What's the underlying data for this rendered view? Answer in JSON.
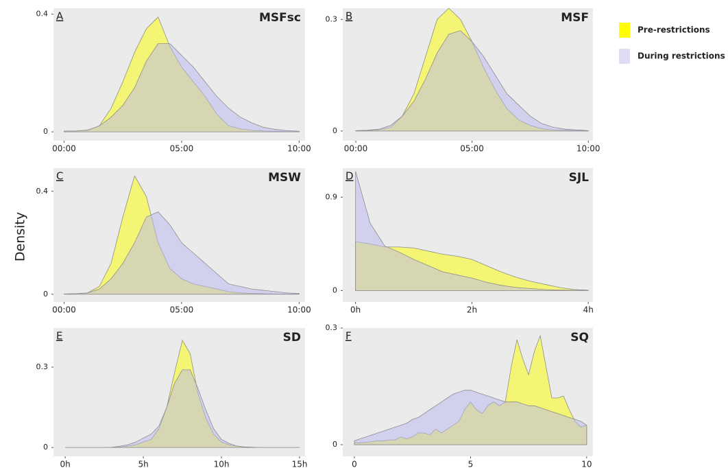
{
  "y_label": "Density",
  "chart_data": [
    {
      "type": "area",
      "panel": "A",
      "title": "MSFsc",
      "x": [
        0,
        0.5,
        1,
        1.5,
        2,
        2.5,
        3,
        3.5,
        4,
        4.5,
        5,
        5.5,
        6,
        6.5,
        7,
        7.5,
        8,
        8.5,
        9,
        9.5,
        10
      ],
      "xlim": [
        -0.45,
        10.25
      ],
      "ylim": [
        -0.03,
        0.42
      ],
      "xticks": [
        {
          "value": 0,
          "label": "00:00"
        },
        {
          "value": 5,
          "label": "05:00"
        },
        {
          "value": 10,
          "label": "10:00"
        }
      ],
      "yticks": [
        0,
        0.4
      ],
      "series": [
        {
          "name": "Pre-restrictions",
          "color": "#ffff00",
          "values": [
            0.003,
            0.003,
            0.005,
            0.02,
            0.08,
            0.17,
            0.27,
            0.35,
            0.39,
            0.29,
            0.22,
            0.17,
            0.12,
            0.06,
            0.02,
            0.01,
            0.005,
            0.003,
            0.002,
            0.001,
            0.001
          ]
        },
        {
          "name": "During restrictions",
          "color": "#b8b8f0",
          "values": [
            0.003,
            0.003,
            0.006,
            0.02,
            0.05,
            0.09,
            0.15,
            0.24,
            0.3,
            0.3,
            0.26,
            0.22,
            0.17,
            0.12,
            0.08,
            0.05,
            0.03,
            0.015,
            0.008,
            0.004,
            0.002
          ]
        }
      ]
    },
    {
      "type": "area",
      "panel": "B",
      "title": "MSF",
      "x": [
        0,
        0.5,
        1,
        1.5,
        2,
        2.5,
        3,
        3.5,
        4,
        4.5,
        5,
        5.5,
        6,
        6.5,
        7,
        7.5,
        8,
        8.5,
        9,
        9.5,
        10
      ],
      "xlim": [
        -0.56,
        10.2
      ],
      "ylim": [
        -0.026,
        0.33
      ],
      "xticks": [
        {
          "value": 0,
          "label": "00:00"
        },
        {
          "value": 5,
          "label": "05:00"
        },
        {
          "value": 10,
          "label": "10:00"
        }
      ],
      "yticks": [
        0,
        0.3
      ],
      "series": [
        {
          "name": "Pre-restrictions",
          "color": "#ffff00",
          "values": [
            0.001,
            0.001,
            0.003,
            0.01,
            0.04,
            0.1,
            0.2,
            0.3,
            0.33,
            0.3,
            0.24,
            0.17,
            0.11,
            0.06,
            0.03,
            0.015,
            0.006,
            0.003,
            0.002,
            0.001,
            0.001
          ]
        },
        {
          "name": "During restrictions",
          "color": "#b8b8f0",
          "values": [
            0.001,
            0.002,
            0.005,
            0.015,
            0.04,
            0.08,
            0.14,
            0.21,
            0.26,
            0.27,
            0.24,
            0.2,
            0.15,
            0.1,
            0.07,
            0.04,
            0.02,
            0.01,
            0.005,
            0.003,
            0.001
          ]
        }
      ]
    },
    {
      "type": "area",
      "panel": "C",
      "title": "MSW",
      "x": [
        0,
        0.5,
        1,
        1.5,
        2,
        2.5,
        3,
        3.5,
        4,
        4.5,
        5,
        5.5,
        6,
        6.5,
        7,
        7.5,
        8,
        8.5,
        9,
        9.5,
        10
      ],
      "xlim": [
        -0.45,
        10.25
      ],
      "ylim": [
        -0.03,
        0.49
      ],
      "xticks": [
        {
          "value": 0,
          "label": "00:00"
        },
        {
          "value": 5,
          "label": "05:00"
        },
        {
          "value": 10,
          "label": "10:00"
        }
      ],
      "yticks": [
        0,
        0.4
      ],
      "series": [
        {
          "name": "Pre-restrictions",
          "color": "#ffff00",
          "values": [
            0.001,
            0.002,
            0.005,
            0.03,
            0.12,
            0.3,
            0.46,
            0.38,
            0.2,
            0.1,
            0.06,
            0.04,
            0.03,
            0.02,
            0.01,
            0.005,
            0.003,
            0.002,
            0.001,
            0.001,
            0.001
          ]
        },
        {
          "name": "During restrictions",
          "color": "#b8b8f0",
          "values": [
            0.001,
            0.002,
            0.005,
            0.02,
            0.06,
            0.12,
            0.2,
            0.3,
            0.32,
            0.27,
            0.2,
            0.16,
            0.12,
            0.08,
            0.04,
            0.03,
            0.02,
            0.015,
            0.01,
            0.005,
            0.003
          ]
        }
      ]
    },
    {
      "type": "area",
      "panel": "D",
      "title": "SJL",
      "x": [
        0,
        0.25,
        0.5,
        0.75,
        1,
        1.25,
        1.5,
        1.75,
        2,
        2.25,
        2.5,
        2.75,
        3,
        3.25,
        3.5,
        3.75,
        4
      ],
      "xlim": [
        -0.22,
        4.08
      ],
      "ylim": [
        -0.11,
        1.18
      ],
      "xticks": [
        {
          "value": 0,
          "label": "0h"
        },
        {
          "value": 2,
          "label": "2h"
        },
        {
          "value": 4,
          "label": "4h"
        }
      ],
      "yticks": [
        0,
        0.9
      ],
      "series": [
        {
          "name": "Pre-restrictions",
          "color": "#ffff00",
          "values": [
            0.47,
            0.45,
            0.42,
            0.42,
            0.41,
            0.38,
            0.35,
            0.33,
            0.3,
            0.24,
            0.18,
            0.13,
            0.09,
            0.06,
            0.03,
            0.01,
            0.003
          ]
        },
        {
          "name": "During restrictions",
          "color": "#b8b8f0",
          "values": [
            1.15,
            0.65,
            0.43,
            0.37,
            0.3,
            0.24,
            0.18,
            0.15,
            0.12,
            0.08,
            0.05,
            0.03,
            0.02,
            0.01,
            0.005,
            0.002,
            0.001
          ]
        }
      ]
    },
    {
      "type": "area",
      "panel": "E",
      "title": "SD",
      "x": [
        0,
        0.5,
        1,
        1.5,
        2,
        2.5,
        3,
        3.5,
        4,
        4.5,
        5,
        5.5,
        6,
        6.5,
        7,
        7.5,
        8,
        8.5,
        9,
        9.5,
        10,
        10.5,
        11,
        11.5,
        12,
        12.5,
        13,
        13.5,
        14,
        14.5,
        15
      ],
      "xlim": [
        -0.75,
        15.35
      ],
      "ylim": [
        -0.033,
        0.446
      ],
      "xticks": [
        {
          "value": 0,
          "label": "0h"
        },
        {
          "value": 5,
          "label": "5h"
        },
        {
          "value": 10,
          "label": "10h"
        },
        {
          "value": 15,
          "label": "15h"
        }
      ],
      "yticks": [
        0,
        0.3
      ],
      "series": [
        {
          "name": "Pre-restrictions",
          "color": "#ffff00",
          "values": [
            0,
            0,
            0,
            0,
            0,
            0,
            0,
            0.002,
            0.005,
            0.01,
            0.02,
            0.03,
            0.07,
            0.15,
            0.28,
            0.4,
            0.35,
            0.2,
            0.11,
            0.05,
            0.02,
            0.01,
            0.005,
            0.002,
            0.001,
            0,
            0,
            0,
            0,
            0,
            0
          ]
        },
        {
          "name": "During restrictions",
          "color": "#b8b8f0",
          "values": [
            0,
            0,
            0,
            0,
            0,
            0,
            0.001,
            0.005,
            0.01,
            0.02,
            0.035,
            0.05,
            0.08,
            0.15,
            0.24,
            0.29,
            0.29,
            0.22,
            0.14,
            0.07,
            0.03,
            0.015,
            0.005,
            0.002,
            0.001,
            0,
            0,
            0,
            0,
            0,
            0
          ]
        }
      ]
    },
    {
      "type": "area",
      "panel": "F",
      "title": "SQ",
      "x": [
        0,
        0.25,
        0.5,
        0.75,
        1,
        1.25,
        1.5,
        1.75,
        2,
        2.25,
        2.5,
        2.75,
        3,
        3.25,
        3.5,
        3.75,
        4,
        4.25,
        4.5,
        4.75,
        5,
        5.25,
        5.5,
        5.75,
        6,
        6.25,
        6.5,
        6.75,
        7,
        7.25,
        7.5,
        7.75,
        8,
        8.25,
        8.5,
        8.75,
        9,
        9.25,
        9.5,
        9.75,
        10
      ],
      "xlim": [
        -0.5,
        10.27
      ],
      "ylim": [
        -0.03,
        0.3
      ],
      "xticks": [
        0,
        5,
        10
      ],
      "yticks": [
        0,
        0.3
      ],
      "series": [
        {
          "name": "Pre-restrictions",
          "color": "#ffff00",
          "values": [
            0.005,
            0.005,
            0.006,
            0.008,
            0.01,
            0.01,
            0.012,
            0.012,
            0.02,
            0.015,
            0.02,
            0.03,
            0.03,
            0.025,
            0.04,
            0.03,
            0.04,
            0.05,
            0.06,
            0.09,
            0.11,
            0.09,
            0.08,
            0.1,
            0.11,
            0.1,
            0.11,
            0.2,
            0.27,
            0.22,
            0.18,
            0.24,
            0.28,
            0.2,
            0.12,
            0.12,
            0.125,
            0.09,
            0.06,
            0.045,
            0.05
          ]
        },
        {
          "name": "During restrictions",
          "color": "#b8b8f0",
          "values": [
            0.01,
            0.015,
            0.02,
            0.025,
            0.03,
            0.035,
            0.04,
            0.045,
            0.05,
            0.055,
            0.065,
            0.07,
            0.08,
            0.09,
            0.1,
            0.11,
            0.12,
            0.13,
            0.135,
            0.14,
            0.14,
            0.135,
            0.13,
            0.125,
            0.12,
            0.115,
            0.11,
            0.11,
            0.11,
            0.105,
            0.1,
            0.1,
            0.095,
            0.09,
            0.085,
            0.08,
            0.075,
            0.07,
            0.065,
            0.06,
            0.05
          ]
        }
      ]
    }
  ]
}
